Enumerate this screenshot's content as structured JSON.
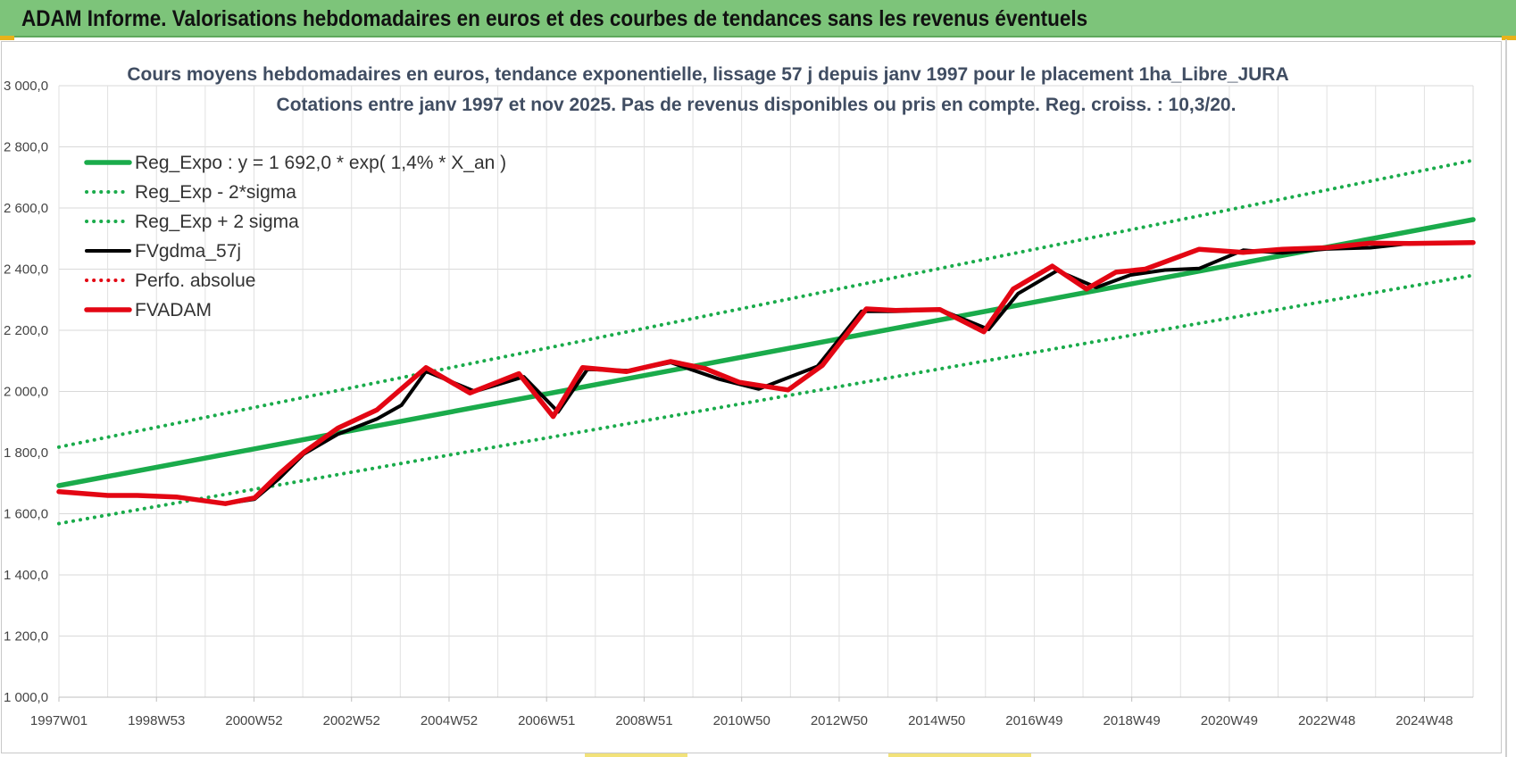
{
  "banner": {
    "title": "ADAM Informe. Valorisations hebdomadaires en euros et des courbes de tendances sans les revenus éventuels"
  },
  "colors": {
    "banner_bg": "#7dc47a",
    "green": "#1aab4b",
    "red": "#e30613",
    "black": "#000000"
  },
  "chart_data": {
    "type": "line",
    "title": "Cours moyens hebdomadaires en euros, tendance exponentielle, lissage 57 j depuis janv 1997 pour le placement 1ha_Libre_JURA",
    "subtitle": "Cotations entre janv 1997 et nov 2025. Pas de revenus disponibles ou pris en compte. Reg. croiss. : 10,3/20.",
    "xlabel": "",
    "ylabel": "",
    "ylim": [
      1000,
      3000
    ],
    "yticks": [
      "3 000,0",
      "2 800,0",
      "2 600,0",
      "2 400,0",
      "2 200,0",
      "2 000,0",
      "1 800,0",
      "1 600,0",
      "1 400,0",
      "1 200,0",
      "1 000,0"
    ],
    "xlim": [
      1997.0,
      2025.9
    ],
    "xticks": [
      "1997W01",
      "1998W53",
      "2000W52",
      "2002W52",
      "2004W52",
      "2006W51",
      "2008W51",
      "2010W50",
      "2012W50",
      "2014W50",
      "2016W49",
      "2018W49",
      "2020W49",
      "2022W48",
      "2024W48"
    ],
    "grid": true,
    "legend_position": "top-left",
    "series": [
      {
        "name": "Reg_Expo : y = 1 692,0 * exp( 1,4% *  X_an )",
        "color": "#1aab4b",
        "style": "solid",
        "x": [
          1997.0,
          2025.9
        ],
        "y": [
          1692,
          2562
        ]
      },
      {
        "name": "Reg_Exp - 2*sigma",
        "color": "#1aab4b",
        "style": "dotted",
        "x": [
          1997.0,
          2025.9
        ],
        "y": [
          1568,
          2380
        ]
      },
      {
        "name": "Reg_Exp + 2 sigma",
        "color": "#1aab4b",
        "style": "dotted",
        "x": [
          1997.0,
          2025.9
        ],
        "y": [
          1818,
          2756
        ]
      },
      {
        "name": "FVgdma_57j",
        "color": "#000000",
        "style": "solid",
        "x": [
          1997.0,
          1998.0,
          1998.6,
          1999.4,
          2000.4,
          2001.0,
          2001.5,
          2002.0,
          2002.7,
          2003.5,
          2004.0,
          2004.5,
          2005.5,
          2006.5,
          2007.2,
          2007.8,
          2008.7,
          2009.5,
          2010.5,
          2011.3,
          2012.5,
          2013.4,
          2014.1,
          2015.0,
          2016.0,
          2016.6,
          2017.4,
          2018.2,
          2018.9,
          2019.6,
          2020.3,
          2021.2,
          2022.0,
          2022.9,
          2023.8,
          2024.6,
          2025.9
        ],
        "y": [
          1672,
          1660,
          1660,
          1655,
          1633,
          1648,
          1715,
          1795,
          1860,
          1910,
          1955,
          2066,
          2000,
          2048,
          1933,
          2072,
          2068,
          2095,
          2040,
          2008,
          2082,
          2262,
          2262,
          2268,
          2203,
          2320,
          2395,
          2340,
          2381,
          2397,
          2402,
          2462,
          2453,
          2466,
          2470,
          2484,
          2487
        ]
      },
      {
        "name": "Perfo. absolue",
        "color": "#e30613",
        "style": "dotted",
        "x": [],
        "y": []
      },
      {
        "name": "FVADAM",
        "color": "#e30613",
        "style": "solid",
        "x": [
          1997.0,
          1998.0,
          1998.6,
          1999.4,
          2000.4,
          2001.0,
          2001.5,
          2002.0,
          2002.7,
          2003.5,
          2004.5,
          2005.4,
          2006.4,
          2007.1,
          2007.7,
          2008.6,
          2009.5,
          2010.2,
          2010.9,
          2011.9,
          2012.6,
          2013.5,
          2014.1,
          2015.0,
          2015.9,
          2016.5,
          2017.3,
          2018.0,
          2018.6,
          2019.2,
          2020.3,
          2021.2,
          2022.0,
          2022.9,
          2023.8,
          2024.6,
          2025.9
        ],
        "y": [
          1672,
          1660,
          1660,
          1655,
          1633,
          1652,
          1730,
          1800,
          1880,
          1940,
          2078,
          1995,
          2058,
          1918,
          2078,
          2065,
          2098,
          2075,
          2030,
          2005,
          2085,
          2270,
          2265,
          2268,
          2195,
          2335,
          2410,
          2335,
          2390,
          2400,
          2465,
          2455,
          2465,
          2470,
          2485,
          2484,
          2487
        ]
      }
    ]
  }
}
